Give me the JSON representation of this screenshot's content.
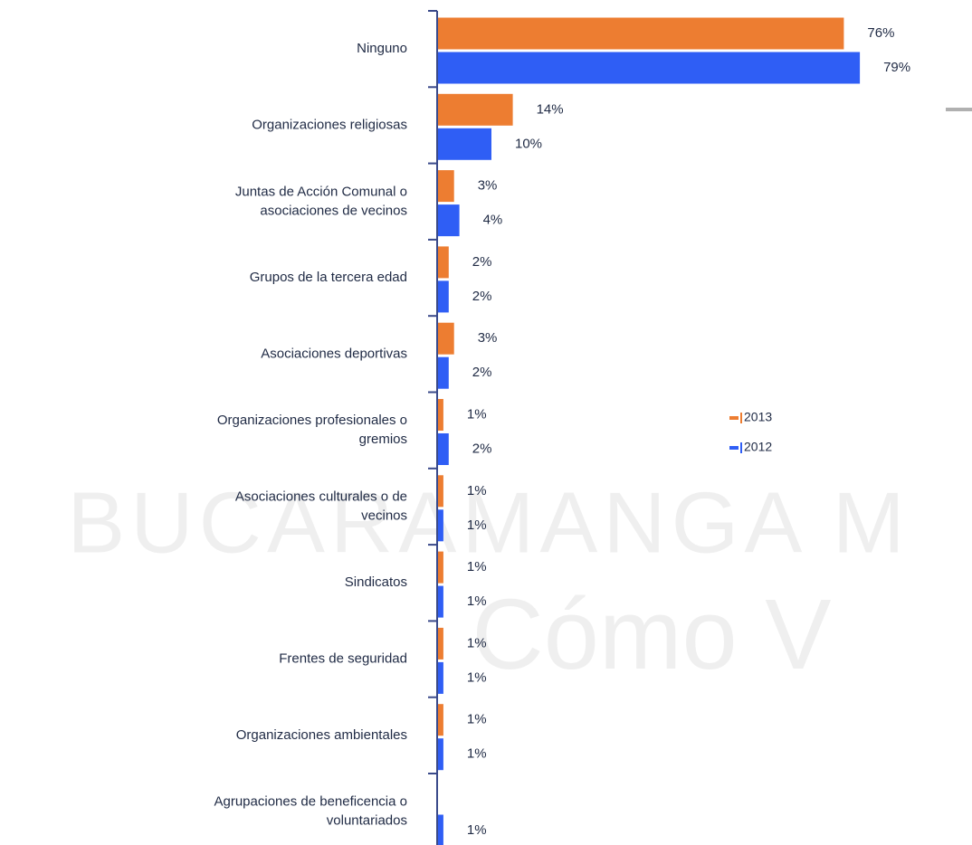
{
  "chart_data": {
    "type": "bar",
    "orientation": "horizontal",
    "categories": [
      "Ninguno",
      "Organizaciones religiosas",
      "Juntas de Acción Comunal o\nasociaciones de vecinos",
      "Grupos de la tercera edad",
      "Asociaciones deportivas",
      "Organizaciones profesionales o\ngremios",
      "Asociaciones culturales o de\nvecinos",
      "Sindicatos",
      "Frentes de seguridad",
      "Organizaciones ambientales",
      "Agrupaciones de beneficencia o\nvoluntariados"
    ],
    "series": [
      {
        "name": "2013",
        "color": "#ed7d31",
        "values": [
          76,
          14,
          3,
          2,
          3,
          1,
          1,
          1,
          1,
          1,
          null
        ],
        "value_labels": [
          "76%",
          "14%",
          "3%",
          "2%",
          "3%",
          "1%",
          "1%",
          "1%",
          "1%",
          "1%",
          null
        ]
      },
      {
        "name": "2012",
        "color": "#2f5ef5",
        "values": [
          79,
          10,
          4,
          2,
          2,
          2,
          1,
          1,
          1,
          1,
          1
        ],
        "value_labels": [
          "79%",
          "10%",
          "4%",
          "2%",
          "2%",
          "2%",
          "1%",
          "1%",
          "1%",
          "1%",
          "1%"
        ]
      }
    ],
    "watermark": [
      "BUCARAMANGA M",
      "Cómo V"
    ]
  }
}
